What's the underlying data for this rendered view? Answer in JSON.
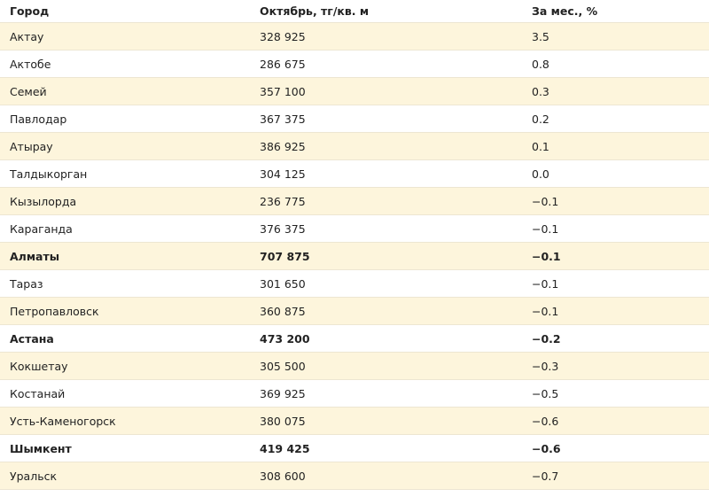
{
  "table": {
    "headers": {
      "city": "Город",
      "october": "Октябрь, тг/кв. м",
      "month_change": "За мес., %"
    },
    "rows": [
      {
        "city": "Актау",
        "price": "328 925",
        "change": "3.5",
        "bold": false
      },
      {
        "city": "Актобе",
        "price": "286 675",
        "change": "0.8",
        "bold": false
      },
      {
        "city": "Семей",
        "price": "357 100",
        "change": "0.3",
        "bold": false
      },
      {
        "city": "Павлодар",
        "price": "367 375",
        "change": "0.2",
        "bold": false
      },
      {
        "city": "Атырау",
        "price": "386 925",
        "change": "0.1",
        "bold": false
      },
      {
        "city": "Талдыкорган",
        "price": "304 125",
        "change": "0.0",
        "bold": false
      },
      {
        "city": "Кызылорда",
        "price": "236 775",
        "change": "−0.1",
        "bold": false
      },
      {
        "city": "Караганда",
        "price": "376 375",
        "change": "−0.1",
        "bold": false
      },
      {
        "city": "Алматы",
        "price": "707 875",
        "change": "−0.1",
        "bold": true
      },
      {
        "city": "Тараз",
        "price": "301 650",
        "change": "−0.1",
        "bold": false
      },
      {
        "city": "Петропавловск",
        "price": "360 875",
        "change": "−0.1",
        "bold": false
      },
      {
        "city": "Астана",
        "price": "473 200",
        "change": "−0.2",
        "bold": true
      },
      {
        "city": "Кокшетау",
        "price": "305 500",
        "change": "−0.3",
        "bold": false
      },
      {
        "city": "Костанай",
        "price": "369 925",
        "change": "−0.5",
        "bold": false
      },
      {
        "city": "Усть-Каменогорск",
        "price": "380 075",
        "change": "−0.6",
        "bold": false
      },
      {
        "city": "Шымкент",
        "price": "419 425",
        "change": "−0.6",
        "bold": true
      },
      {
        "city": "Уральск",
        "price": "308 600",
        "change": "−0.7",
        "bold": false
      }
    ]
  }
}
